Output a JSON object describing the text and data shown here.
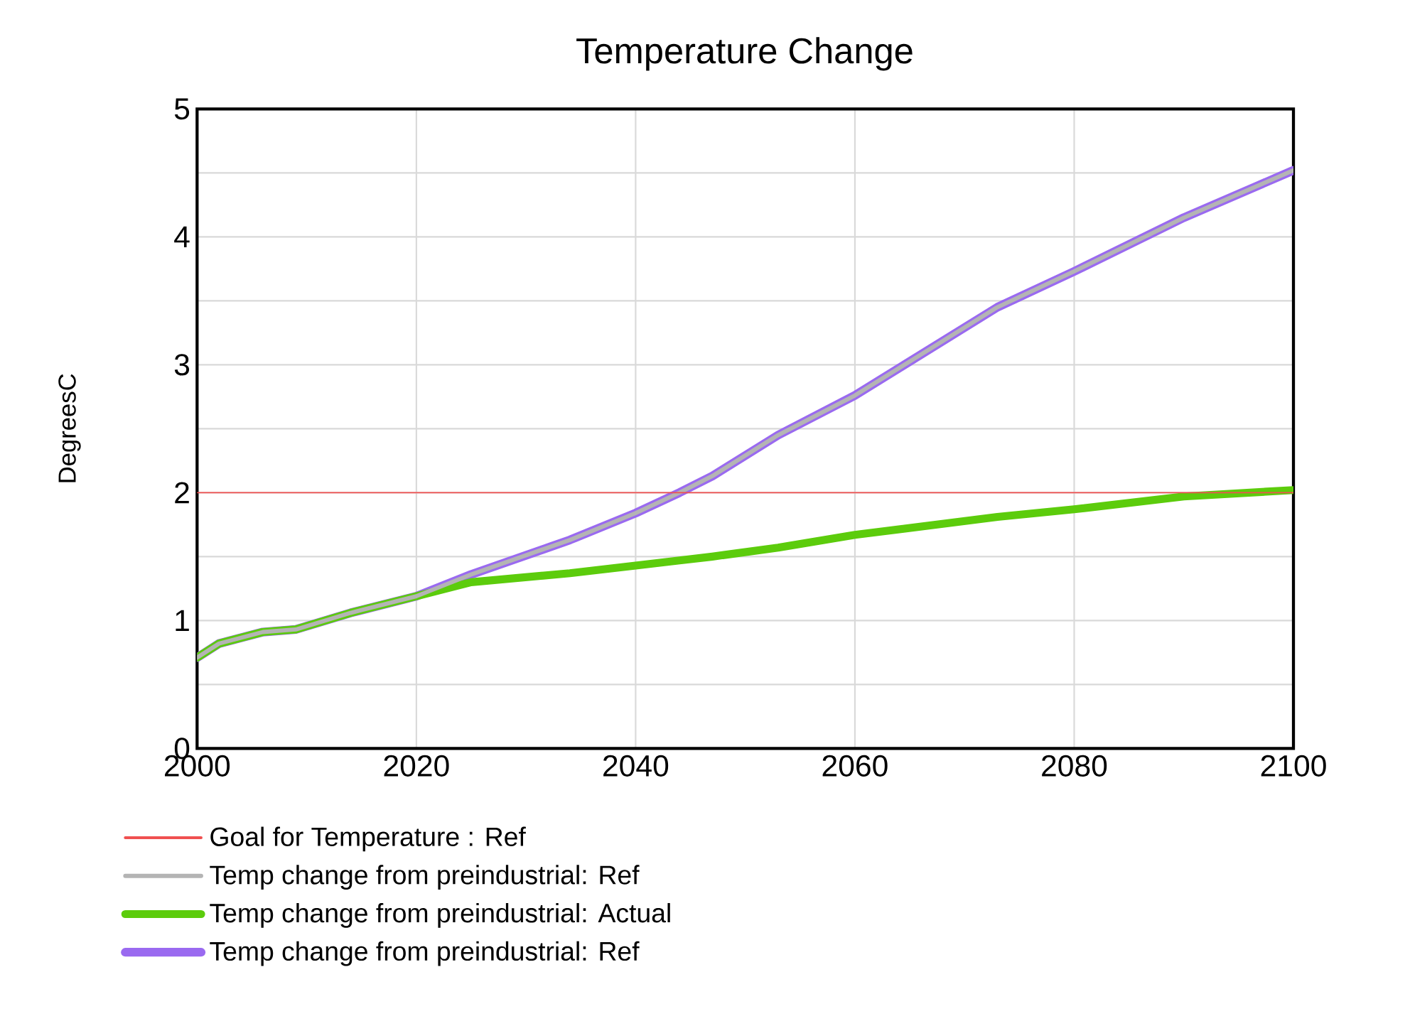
{
  "chart_data": {
    "type": "line",
    "title": "Temperature Change",
    "ylabel": "DegreesC",
    "xlim": [
      2000,
      2100
    ],
    "xticks": [
      2000,
      2020,
      2040,
      2060,
      2080,
      2100
    ],
    "ylim": [
      0,
      5
    ],
    "yticks": [
      0,
      {
        "value": 0.5,
        "label": null
      },
      1,
      {
        "value": 1.5,
        "label": null
      },
      2,
      {
        "value": 2.5,
        "label": null
      },
      3,
      {
        "value": 3.5,
        "label": null
      },
      4,
      {
        "value": 4.5,
        "label": null
      },
      5
    ],
    "grid": true,
    "legend": "bottom",
    "series": [
      {
        "name": "Goal for Temperature : Ref",
        "color": "#f05050",
        "x": [
          2000,
          2100
        ],
        "values": [
          2,
          2
        ]
      },
      {
        "name": "Temp change from preindustrial: Ref",
        "color": "#b4b4b4",
        "x": [
          2000,
          2002,
          2006,
          2009,
          2014,
          2020,
          2025,
          2034,
          2040,
          2044,
          2047,
          2053,
          2060,
          2073,
          2080,
          2090,
          2100
        ],
        "values": [
          0.71,
          0.82,
          0.91,
          0.93,
          1.06,
          1.19,
          1.36,
          1.63,
          1.84,
          2.0,
          2.13,
          2.45,
          2.76,
          3.45,
          3.73,
          4.15,
          4.52
        ]
      },
      {
        "name": "Temp change from preindustrial: Actual",
        "color": "#5ccc0c",
        "x": [
          2000,
          2002,
          2006,
          2009,
          2014,
          2020,
          2025,
          2034,
          2040,
          2044,
          2047,
          2053,
          2060,
          2073,
          2080,
          2090,
          2100
        ],
        "values": [
          0.71,
          0.82,
          0.91,
          0.93,
          1.06,
          1.19,
          1.3,
          1.37,
          1.43,
          1.47,
          1.5,
          1.57,
          1.67,
          1.81,
          1.87,
          1.97,
          2.02
        ]
      },
      {
        "name": "Temp change from preindustrial: Ref",
        "color": "#9a6af0",
        "x": [
          2000,
          2002,
          2006,
          2009,
          2014,
          2020,
          2025,
          2034,
          2040,
          2044,
          2047,
          2053,
          2060,
          2073,
          2080,
          2090,
          2100
        ],
        "values": [
          0.71,
          0.82,
          0.91,
          0.93,
          1.06,
          1.19,
          1.36,
          1.63,
          1.84,
          2.0,
          2.13,
          2.45,
          2.76,
          3.45,
          3.73,
          4.15,
          4.52
        ]
      }
    ]
  }
}
